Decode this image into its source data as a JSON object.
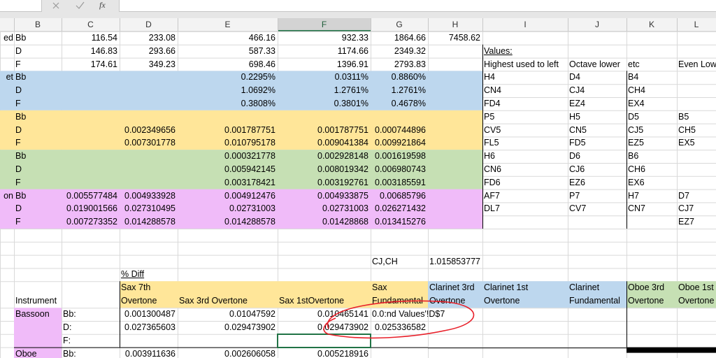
{
  "formula_bar": {
    "fx": "fx"
  },
  "columns": [
    "B",
    "C",
    "D",
    "E",
    "F",
    "G",
    "H",
    "I",
    "J",
    "K",
    "L"
  ],
  "rows": [
    [
      "ed",
      "Bb",
      "116.54",
      "233.08",
      "466.16",
      "932.33",
      "1864.66",
      "7458.62",
      null,
      null,
      null,
      null
    ],
    [
      null,
      "D",
      "146.83",
      "293.66",
      "587.33",
      "1174.66",
      "2349.32",
      null,
      "Values:",
      null,
      null,
      null
    ],
    [
      null,
      "F",
      "174.61",
      "349.23",
      "698.46",
      "1396.91",
      "2793.83",
      null,
      "Highest used to left",
      "Octave lower",
      "etc",
      "Even Low"
    ],
    [
      "et",
      "Bb",
      null,
      null,
      "0.2295%",
      "0.0311%",
      "0.8860%",
      null,
      "H4",
      "D4",
      "B4",
      null
    ],
    [
      null,
      "D",
      null,
      null,
      "1.0692%",
      "1.2761%",
      "1.2761%",
      null,
      "CN4",
      "CJ4",
      "CH4",
      null
    ],
    [
      null,
      "F",
      null,
      null,
      "0.3808%",
      "0.3801%",
      "0.4678%",
      null,
      "FD4",
      "EZ4",
      "EX4",
      null
    ],
    [
      null,
      "Bb",
      null,
      null,
      null,
      null,
      null,
      null,
      "P5",
      "H5",
      "D5",
      "B5"
    ],
    [
      null,
      "D",
      null,
      "0.002349656",
      "0.001787751",
      "0.001787751",
      "0.000744896",
      null,
      "CV5",
      "CN5",
      "CJ5",
      "CH5"
    ],
    [
      null,
      "F",
      null,
      "0.007301778",
      "0.010795178",
      "0.009041384",
      "0.009921864",
      null,
      "FL5",
      "FD5",
      "EZ5",
      "EX5"
    ],
    [
      null,
      "Bb",
      null,
      null,
      "0.000321778",
      "0.002928148",
      "0.001619598",
      null,
      "H6",
      "D6",
      "B6",
      null
    ],
    [
      null,
      "D",
      null,
      null,
      "0.005942145",
      "0.008019342",
      "0.006980743",
      null,
      "CN6",
      "CJ6",
      "CH6",
      null
    ],
    [
      null,
      "F",
      null,
      null,
      "0.003178421",
      "0.003192761",
      "0.003185591",
      null,
      "FD6",
      "EZ6",
      "EX6",
      null
    ],
    [
      "on",
      "Bb",
      "0.005577484",
      "0.004933928",
      "0.004912476",
      "0.004933875",
      "0.00685796",
      null,
      "AF7",
      "P7",
      "H7",
      "D7"
    ],
    [
      null,
      "D",
      "0.019001566",
      "0.027310495",
      "0.02731003",
      "0.02731003",
      "0.026271432",
      null,
      "DL7",
      "CV7",
      "CN7",
      "CJ7"
    ],
    [
      null,
      "F",
      "0.007273352",
      "0.014288578",
      "0.014288578",
      "0.01428868",
      "0.013415276",
      null,
      null,
      null,
      null,
      "EZ7"
    ],
    [
      null,
      null,
      null,
      null,
      null,
      null,
      null,
      null,
      null,
      null,
      null,
      null
    ],
    [
      null,
      null,
      null,
      null,
      null,
      null,
      null,
      null,
      null,
      null,
      null,
      null
    ],
    [
      null,
      null,
      null,
      null,
      null,
      null,
      "CJ,CH",
      "1.015853777",
      null,
      null,
      null,
      null
    ],
    [
      null,
      null,
      null,
      "% Diff",
      null,
      null,
      null,
      null,
      null,
      null,
      null,
      null
    ],
    [
      null,
      "Instrument",
      null,
      "Sax 7th Overtone",
      "Sax 3rd Overtone",
      "Sax 1stOvertone",
      "Sax Fundamental",
      "Clarinet 3rd Overtone",
      "Clarinet 1st Overtone",
      "Clarinet Fundamental",
      "Oboe 3rd Overtone",
      "Oboe 1st Overtone"
    ],
    [
      null,
      "Bassoon",
      "Bb:",
      "0.001300487",
      "0.01047592",
      "0.010465141",
      "0.0:nd Values'!D$7",
      null,
      null,
      null,
      null,
      null
    ],
    [
      null,
      null,
      "D:",
      "0.027365603",
      "0.029473902",
      "0.029473902",
      "0.025336582",
      null,
      null,
      null,
      null,
      null
    ],
    [
      null,
      null,
      "F:",
      null,
      null,
      null,
      null,
      null,
      null,
      null,
      null,
      null
    ],
    [
      null,
      "Oboe",
      "Bb:",
      "0.003911636",
      "0.002606058",
      "0.005218916",
      null,
      null,
      null,
      null,
      null,
      null
    ]
  ]
}
